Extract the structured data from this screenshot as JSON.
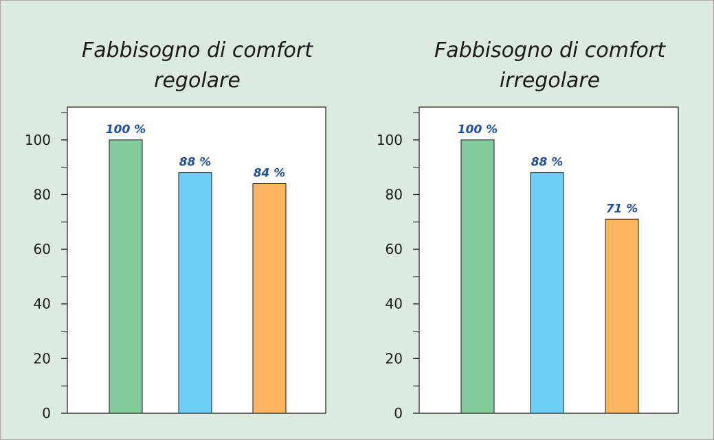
{
  "chart_data": [
    {
      "type": "bar",
      "title": [
        "Fabbisogno di comfort",
        "regolare"
      ],
      "categories": [
        "",
        "",
        ""
      ],
      "values": [
        100,
        88,
        84
      ],
      "data_labels": [
        "100 %",
        "88 %",
        "84 %"
      ],
      "colors": [
        "#82cc9b",
        "#6dcff6",
        "#fbb45f"
      ],
      "ylim": [
        0,
        112
      ],
      "yticks": [
        0,
        20,
        40,
        60,
        80,
        100
      ],
      "ytick_labels": [
        "0",
        "20",
        "40",
        "60",
        "80",
        "100"
      ],
      "minor_tick_step": 10,
      "grid": false,
      "xlabel": "",
      "ylabel": ""
    },
    {
      "type": "bar",
      "title": [
        "Fabbisogno di comfort",
        "irregolare"
      ],
      "categories": [
        "",
        "",
        ""
      ],
      "values": [
        100,
        88,
        71
      ],
      "data_labels": [
        "100 %",
        "88 %",
        "71 %"
      ],
      "colors": [
        "#82cc9b",
        "#6dcff6",
        "#fbb45f"
      ],
      "ylim": [
        0,
        112
      ],
      "yticks": [
        0,
        20,
        40,
        60,
        80,
        100
      ],
      "ytick_labels": [
        "0",
        "20",
        "40",
        "60",
        "80",
        "100"
      ],
      "minor_tick_step": 10,
      "grid": false,
      "xlabel": "",
      "ylabel": ""
    }
  ]
}
